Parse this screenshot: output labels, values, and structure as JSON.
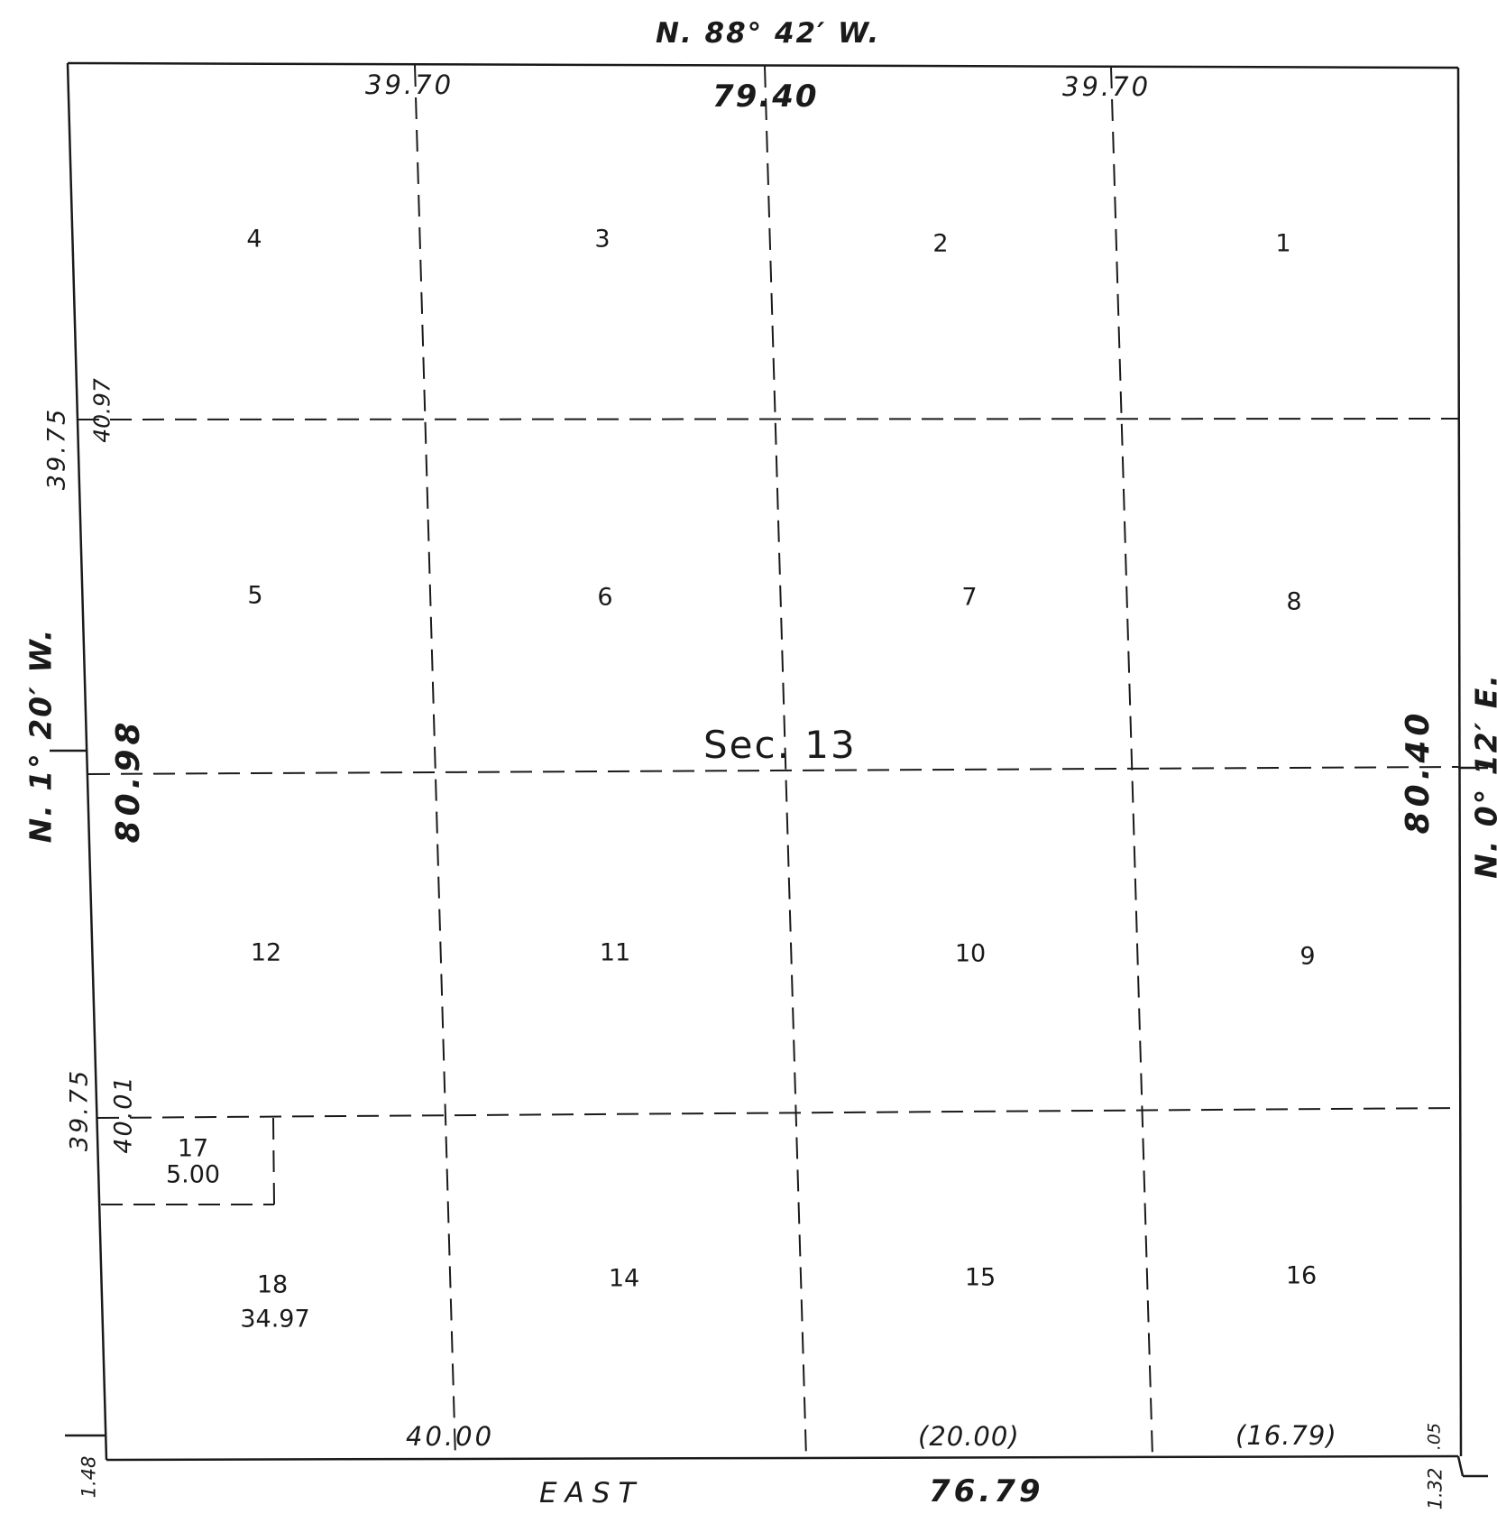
{
  "section": {
    "label": "Sec. 13"
  },
  "bearings": {
    "north": "N. 88° 42′ W.",
    "south": "EAST",
    "west": "N. 1° 20′ W.",
    "east": "N. 0° 12′ E."
  },
  "distances": {
    "north_total": "79.40",
    "north_left": "39.70",
    "north_right": "39.70",
    "west_total": "80.98",
    "east_total": "80.40",
    "south_total": "76.79",
    "west_upper_outer": "39.75",
    "west_upper_inner": "40.97",
    "west_lower_outer": "39.75",
    "west_lower_inner": "40.01",
    "south_col1": "40.00",
    "south_col3": "(20.00)",
    "south_col4": "(16.79)",
    "corner_sw_offset": "1.48",
    "corner_se_offset": "1.32",
    "corner_se_small": ".05"
  },
  "lots": [
    {
      "number": "1"
    },
    {
      "number": "2"
    },
    {
      "number": "3"
    },
    {
      "number": "4"
    },
    {
      "number": "5"
    },
    {
      "number": "6"
    },
    {
      "number": "7"
    },
    {
      "number": "8"
    },
    {
      "number": "9"
    },
    {
      "number": "10"
    },
    {
      "number": "11"
    },
    {
      "number": "12"
    },
    {
      "number": "14"
    },
    {
      "number": "15"
    },
    {
      "number": "16"
    },
    {
      "number": "17",
      "area": "5.00"
    },
    {
      "number": "18",
      "area": "34.97"
    }
  ],
  "colors": {
    "ink": "#1a1a1a",
    "paper": "#ffffff"
  }
}
